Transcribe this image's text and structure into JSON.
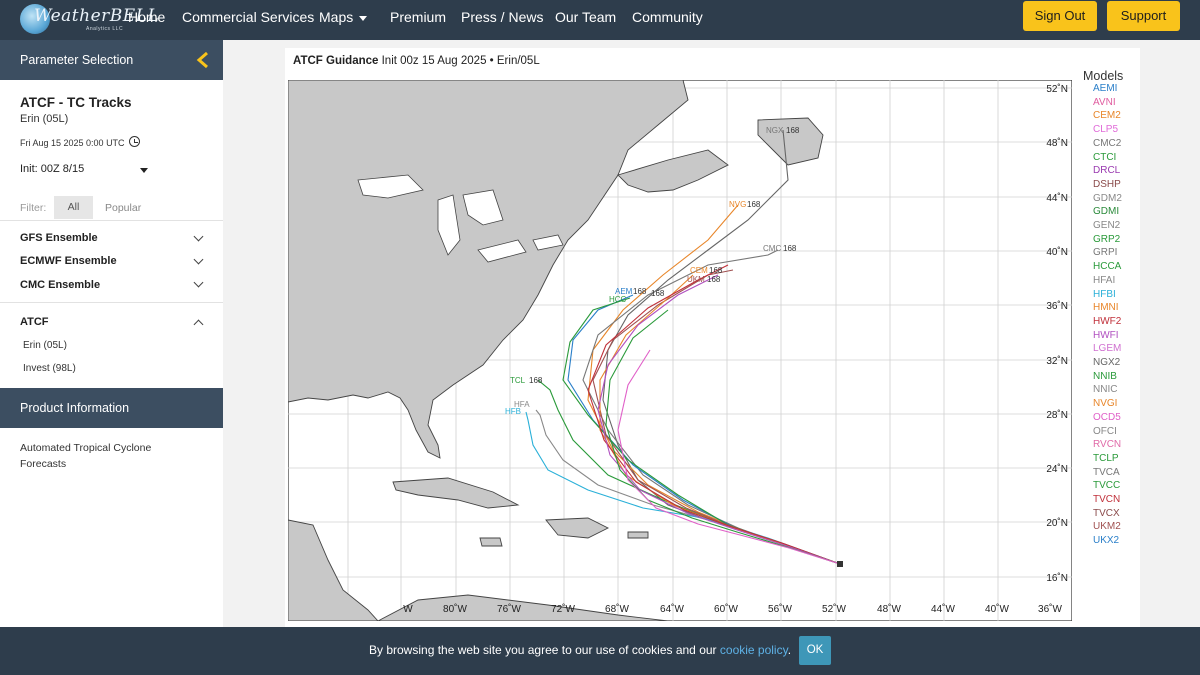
{
  "nav": {
    "logo_text": "WeatherBELL",
    "logo_sub": "Analytics LLC",
    "links": [
      "Home",
      "Commercial Services",
      "Maps",
      "Premium",
      "Press / News",
      "Our Team",
      "Community"
    ],
    "sign_out": "Sign Out",
    "support": "Support"
  },
  "sidebar": {
    "param_header": "Parameter Selection",
    "title": "ATCF - TC Tracks",
    "storm": "Erin (05L)",
    "date": "Fri Aug 15 2025 0:00 UTC",
    "init": "Init: 00Z 8/15",
    "filter_label": "Filter:",
    "filter_all": "All",
    "filter_popular": "Popular",
    "groups": [
      "GFS Ensemble",
      "ECMWF Ensemble",
      "CMC Ensemble",
      "ATCF"
    ],
    "atcf_items": [
      "Erin (05L)",
      "Invest (98L)"
    ],
    "product_header": "Product Information",
    "product_desc": "Automated Tropical Cyclone Forecasts"
  },
  "figure": {
    "title_bold": "ATCF Guidance",
    "title_rest": "Init 00z 15 Aug 2025 • Erin/05L",
    "lat_labels": [
      "52˚N",
      "48˚N",
      "44˚N",
      "40˚N",
      "36˚N",
      "32˚N",
      "28˚N",
      "24˚N",
      "20˚N",
      "16˚N"
    ],
    "lon_labels": [
      "W",
      "80˚W",
      "76˚W",
      "72˚W",
      "68˚W",
      "64˚W",
      "60˚W",
      "56˚W",
      "52˚W",
      "48˚W",
      "44˚W",
      "40˚W",
      "36˚W"
    ],
    "models_title": "Models",
    "models": [
      {
        "name": "AEMI",
        "color": "#2a7fc9"
      },
      {
        "name": "AVNI",
        "color": "#e05c9f"
      },
      {
        "name": "CEM2",
        "color": "#e8862a"
      },
      {
        "name": "CLP5",
        "color": "#e06ad8"
      },
      {
        "name": "CMC2",
        "color": "#777777"
      },
      {
        "name": "CTCI",
        "color": "#2a9a3a"
      },
      {
        "name": "DRCL",
        "color": "#9a3ab0"
      },
      {
        "name": "DSHP",
        "color": "#8a4a4a"
      },
      {
        "name": "GDM2",
        "color": "#888888"
      },
      {
        "name": "GDMI",
        "color": "#2a8a3a"
      },
      {
        "name": "GEN2",
        "color": "#888888"
      },
      {
        "name": "GRP2",
        "color": "#2a9a3a"
      },
      {
        "name": "GRPI",
        "color": "#777777"
      },
      {
        "name": "HCCA",
        "color": "#2a9a3a"
      },
      {
        "name": "HFAI",
        "color": "#888888"
      },
      {
        "name": "HFBI",
        "color": "#2ab0d8"
      },
      {
        "name": "HMNI",
        "color": "#e8862a"
      },
      {
        "name": "HWF2",
        "color": "#c0303a"
      },
      {
        "name": "HWFI",
        "color": "#b050c0"
      },
      {
        "name": "LGEM",
        "color": "#d070d0"
      },
      {
        "name": "NGX2",
        "color": "#666666"
      },
      {
        "name": "NNIB",
        "color": "#2a9a3a"
      },
      {
        "name": "NNIC",
        "color": "#888888"
      },
      {
        "name": "NVGI",
        "color": "#e8862a"
      },
      {
        "name": "OCD5",
        "color": "#e060c8"
      },
      {
        "name": "OFCI",
        "color": "#888888"
      },
      {
        "name": "RVCN",
        "color": "#e06aa8"
      },
      {
        "name": "TCLP",
        "color": "#2a9a3a"
      },
      {
        "name": "TVCA",
        "color": "#777777"
      },
      {
        "name": "TVCC",
        "color": "#2a9a3a"
      },
      {
        "name": "TVCN",
        "color": "#c0303a"
      },
      {
        "name": "TVCX",
        "color": "#8a4a4a"
      },
      {
        "name": "UKM2",
        "color": "#a05050"
      },
      {
        "name": "UKX2",
        "color": "#2a7fc9"
      }
    ],
    "track_labels": [
      {
        "text": "NGX",
        "hour": "168",
        "color": "#777777"
      },
      {
        "text": "NVG",
        "hour": "168",
        "color": "#e8862a"
      },
      {
        "text": "CMC",
        "hour": "168",
        "color": "#777777"
      },
      {
        "text": "AEM",
        "hour": "168",
        "color": "#2a7fc9"
      },
      {
        "text": "HCC",
        "hour": "168",
        "color": "#2a9a3a"
      },
      {
        "text": "TCL",
        "hour": "168",
        "color": "#2a9a3a"
      },
      {
        "text": "HFA",
        "hour": "",
        "color": "#888888"
      },
      {
        "text": "HFB",
        "hour": "",
        "color": "#2ab0d8"
      },
      {
        "text": "UKM",
        "hour": "168",
        "color": "#a05050"
      },
      {
        "text": "CEM",
        "hour": "168",
        "color": "#e8862a"
      }
    ]
  },
  "cookie": {
    "text": "By browsing the web site you agree to our use of cookies and our",
    "link": "cookie policy",
    "ok": "OK"
  }
}
